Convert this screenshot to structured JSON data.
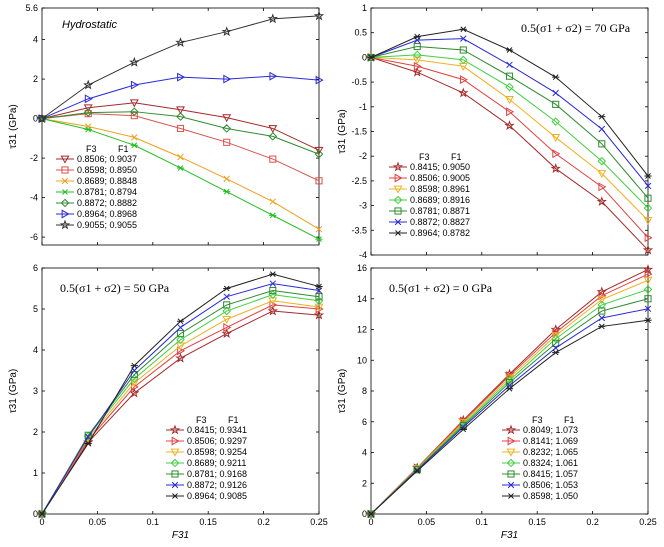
{
  "chart_data": [
    {
      "type": "line",
      "title": "Hydrostatic",
      "title_style": "italic",
      "xlabel": "",
      "ylabel": "τ31 (GPa)",
      "xlim": [
        0,
        0.25
      ],
      "ylim": [
        -6.4,
        5.6
      ],
      "xticks": [
        0,
        0.05,
        0.1,
        0.15,
        0.2,
        0.25
      ],
      "yticks": [
        -6,
        -4,
        -2,
        0,
        2,
        4,
        5.6
      ],
      "show_xticklabels": false,
      "legend": {
        "position": "bottom-left",
        "header": [
          "F3",
          "F1"
        ]
      },
      "x": [
        0,
        0.0417,
        0.0833,
        0.125,
        0.1667,
        0.2083,
        0.25
      ],
      "series": [
        {
          "name": "0.8506; 0.9037",
          "color": "#a52a2a",
          "marker": "triangle-down",
          "values": [
            0,
            0.55,
            0.8,
            0.45,
            0.05,
            -0.5,
            -1.6
          ]
        },
        {
          "name": "0.8598; 0.8950",
          "color": "#d9534f",
          "marker": "square",
          "values": [
            0,
            0.25,
            0.15,
            -0.5,
            -1.2,
            -2.05,
            -3.15
          ]
        },
        {
          "name": "0.8689; 0.8848",
          "color": "#f0a020",
          "marker": "x",
          "values": [
            0,
            -0.4,
            -0.95,
            -1.95,
            -3.05,
            -4.2,
            -5.6
          ]
        },
        {
          "name": "0.8781; 0.8794",
          "color": "#22c022",
          "marker": "asterisk",
          "values": [
            0,
            -0.55,
            -1.35,
            -2.5,
            -3.7,
            -4.9,
            -6.1
          ]
        },
        {
          "name": "0.8872; 0.8882",
          "color": "#2e8b2e",
          "marker": "diamond",
          "values": [
            0,
            0.3,
            0.35,
            0.1,
            -0.5,
            -0.9,
            -1.8
          ]
        },
        {
          "name": "0.8964; 0.8968",
          "color": "#2a2ad8",
          "marker": "triangle-right",
          "values": [
            0,
            1.0,
            1.7,
            2.1,
            2.0,
            2.15,
            1.95
          ]
        },
        {
          "name": "0.9055; 0.9055",
          "color": "#333333",
          "marker": "star",
          "values": [
            0,
            1.7,
            2.85,
            3.85,
            4.4,
            5.05,
            5.2
          ]
        }
      ]
    },
    {
      "type": "line",
      "title": "0.5(σ1 + σ2) = 70 GPa",
      "xlabel": "",
      "ylabel": "τ31 (GPa)",
      "xlim": [
        0,
        0.25
      ],
      "ylim": [
        -4,
        1
      ],
      "xticks": [
        0,
        0.05,
        0.1,
        0.15,
        0.2,
        0.25
      ],
      "yticks": [
        -4,
        -3.5,
        -3,
        -2.5,
        -2,
        -1.5,
        -1,
        -0.5,
        0,
        0.5,
        1
      ],
      "show_xticklabels": false,
      "legend": {
        "position": "bottom-left",
        "header": [
          "F3",
          "F1"
        ]
      },
      "x": [
        0,
        0.0417,
        0.0833,
        0.125,
        0.1667,
        0.2083,
        0.25
      ],
      "series": [
        {
          "name": "0.8415; 0.9050",
          "color": "#a52a2a",
          "marker": "star",
          "values": [
            0,
            -0.3,
            -0.72,
            -1.38,
            -2.25,
            -2.92,
            -3.9
          ]
        },
        {
          "name": "0.8506; 0.9005",
          "color": "#e04040",
          "marker": "triangle-right",
          "values": [
            0,
            -0.18,
            -0.45,
            -1.1,
            -1.95,
            -2.62,
            -3.65
          ]
        },
        {
          "name": "0.8598; 0.8961",
          "color": "#f0b020",
          "marker": "triangle-down",
          "values": [
            0,
            -0.05,
            -0.18,
            -0.85,
            -1.62,
            -2.35,
            -3.3
          ]
        },
        {
          "name": "0.8689; 0.8916",
          "color": "#40d040",
          "marker": "diamond",
          "values": [
            0,
            0.05,
            -0.05,
            -0.6,
            -1.3,
            -2.1,
            -3.05
          ]
        },
        {
          "name": "0.8781; 0.8871",
          "color": "#2e8b2e",
          "marker": "square",
          "values": [
            0,
            0.22,
            0.15,
            -0.38,
            -0.95,
            -1.75,
            -2.85
          ]
        },
        {
          "name": "0.8872; 0.8827",
          "color": "#2a2ad8",
          "marker": "x",
          "values": [
            0,
            0.35,
            0.38,
            -0.15,
            -0.72,
            -1.45,
            -2.6
          ]
        },
        {
          "name": "0.8964; 0.8782",
          "color": "#222222",
          "marker": "asterisk",
          "values": [
            0,
            0.42,
            0.57,
            0.15,
            -0.4,
            -1.2,
            -2.4
          ]
        }
      ]
    },
    {
      "type": "line",
      "title": "0.5(σ1 + σ2) = 50 GPa",
      "xlabel": "F31",
      "ylabel": "τ31 (GPa)",
      "xlim": [
        0,
        0.25
      ],
      "ylim": [
        0,
        6
      ],
      "xticks": [
        0,
        0.05,
        0.1,
        0.15,
        0.2,
        0.25
      ],
      "yticks": [
        0,
        1,
        2,
        3,
        4,
        5,
        6
      ],
      "show_xticklabels": true,
      "legend": {
        "position": "bottom-right",
        "header": [
          "F3",
          "F1"
        ]
      },
      "x": [
        0,
        0.0417,
        0.0833,
        0.125,
        0.1667,
        0.2083,
        0.25
      ],
      "series": [
        {
          "name": "0.8415; 0.9341",
          "color": "#a52a2a",
          "marker": "star",
          "values": [
            0,
            1.75,
            2.95,
            3.8,
            4.4,
            4.95,
            4.85
          ]
        },
        {
          "name": "0.8506; 0.9297",
          "color": "#e04040",
          "marker": "triangle-right",
          "values": [
            0,
            1.8,
            3.1,
            3.98,
            4.55,
            5.1,
            5.0
          ]
        },
        {
          "name": "0.8598; 0.9254",
          "color": "#f0b020",
          "marker": "triangle-down",
          "values": [
            0,
            1.85,
            3.2,
            4.1,
            4.75,
            5.2,
            5.05
          ]
        },
        {
          "name": "0.8689; 0.9211",
          "color": "#40d040",
          "marker": "diamond",
          "values": [
            0,
            1.9,
            3.3,
            4.25,
            4.95,
            5.35,
            5.2
          ]
        },
        {
          "name": "0.8781; 0.9168",
          "color": "#2e8b2e",
          "marker": "square",
          "values": [
            0,
            1.92,
            3.4,
            4.4,
            5.1,
            5.45,
            5.3
          ]
        },
        {
          "name": "0.8872; 0.9126",
          "color": "#2a2ad8",
          "marker": "x",
          "values": [
            0,
            1.88,
            3.5,
            4.55,
            5.3,
            5.62,
            5.45
          ]
        },
        {
          "name": "0.8964; 0.9085",
          "color": "#222222",
          "marker": "asterisk",
          "values": [
            0,
            1.72,
            3.62,
            4.7,
            5.5,
            5.85,
            5.55
          ]
        }
      ]
    },
    {
      "type": "line",
      "title": "0.5(σ1 + σ2) = 0 GPa",
      "xlabel": "F31",
      "ylabel": "τ31 (GPa)",
      "xlim": [
        0,
        0.25
      ],
      "ylim": [
        0,
        16
      ],
      "xticks": [
        0,
        0.05,
        0.1,
        0.15,
        0.2,
        0.25
      ],
      "yticks": [
        0,
        2,
        4,
        6,
        8,
        10,
        12,
        14,
        16
      ],
      "show_xticklabels": true,
      "legend": {
        "position": "bottom-right",
        "header": [
          "F3",
          "F1"
        ]
      },
      "x": [
        0,
        0.0417,
        0.0833,
        0.125,
        0.1667,
        0.2083,
        0.25
      ],
      "series": [
        {
          "name": "0.8049; 1.073",
          "color": "#a52a2a",
          "marker": "star",
          "values": [
            0,
            3.0,
            6.1,
            9.1,
            12.0,
            14.45,
            15.9
          ]
        },
        {
          "name": "0.8141; 1.069",
          "color": "#e04040",
          "marker": "triangle-right",
          "values": [
            0,
            3.0,
            6.05,
            9.0,
            11.8,
            14.2,
            15.6
          ]
        },
        {
          "name": "0.8232; 1.065",
          "color": "#f0b020",
          "marker": "triangle-down",
          "values": [
            0,
            2.95,
            5.95,
            8.85,
            11.6,
            13.95,
            15.2
          ]
        },
        {
          "name": "0.8324; 1.061",
          "color": "#40d040",
          "marker": "diamond",
          "values": [
            0,
            2.92,
            5.85,
            8.7,
            11.4,
            13.6,
            14.6
          ]
        },
        {
          "name": "0.8415; 1.057",
          "color": "#2e8b2e",
          "marker": "square",
          "values": [
            0,
            2.88,
            5.75,
            8.55,
            11.1,
            13.2,
            14.0
          ]
        },
        {
          "name": "0.8506; 1.053",
          "color": "#2a2ad8",
          "marker": "x",
          "values": [
            0,
            2.85,
            5.65,
            8.35,
            10.8,
            12.75,
            13.35
          ]
        },
        {
          "name": "0.8598; 1.050",
          "color": "#222222",
          "marker": "asterisk",
          "values": [
            0,
            2.8,
            5.5,
            8.15,
            10.5,
            12.2,
            12.6
          ]
        }
      ]
    }
  ]
}
